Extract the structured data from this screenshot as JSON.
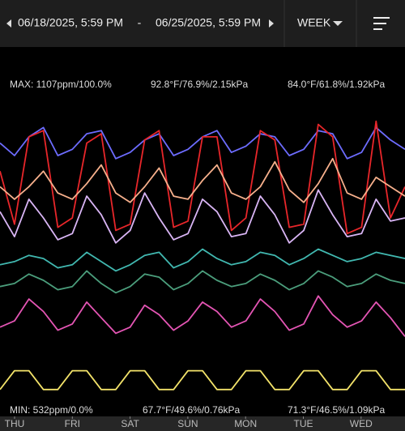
{
  "header": {
    "start": "06/18/2025, 5:59 PM",
    "separator": "-",
    "end": "06/25/2025, 5:59 PM",
    "period": "WEEK"
  },
  "max_labels": [
    "MAX: 1107ppm/100.0%",
    "92.8°F/76.9%/2.15kPa",
    "84.0°F/61.8%/1.92kPa"
  ],
  "min_labels": [
    "MIN: 532ppm/0.0%",
    "67.7°F/49.6%/0.76kPa",
    "71.3°F/46.5%/1.09kPa"
  ],
  "chart_data": {
    "type": "line",
    "x_tick_labels": [
      "THU",
      "FRI",
      "SAT",
      "SUN",
      "MON",
      "TUE",
      "WED"
    ],
    "ylim": [
      0,
      100
    ],
    "series": [
      {
        "color": "#6d6cff",
        "values": [
          84,
          80,
          86,
          89,
          80,
          82,
          87,
          88,
          79,
          81,
          85,
          87,
          80,
          82,
          86,
          88,
          81,
          83,
          87,
          86,
          80,
          82,
          88,
          87,
          79,
          81,
          89,
          85,
          82
        ]
      },
      {
        "color": "#e8262a",
        "values": [
          75,
          58,
          86,
          88,
          57,
          60,
          84,
          87,
          56,
          58,
          85,
          88,
          57,
          59,
          86,
          86,
          56,
          60,
          88,
          85,
          57,
          58,
          90,
          86,
          55,
          57,
          91,
          60,
          70
        ]
      },
      {
        "color": "#f7b08c",
        "values": [
          70,
          66,
          70,
          75,
          68,
          66,
          71,
          77,
          68,
          65,
          70,
          76,
          67,
          66,
          72,
          77,
          68,
          66,
          70,
          78,
          69,
          65,
          71,
          79,
          68,
          66,
          73,
          70,
          67
        ]
      },
      {
        "color": "#d9b5f5",
        "values": [
          62,
          54,
          66,
          60,
          53,
          55,
          67,
          61,
          52,
          56,
          68,
          60,
          53,
          55,
          66,
          62,
          54,
          55,
          67,
          61,
          52,
          56,
          69,
          61,
          54,
          55,
          66,
          59,
          60
        ]
      },
      {
        "color": "#41b8b0",
        "values": [
          45,
          46,
          48,
          47,
          44,
          45,
          49,
          46,
          43,
          45,
          48,
          49,
          44,
          46,
          50,
          47,
          45,
          46,
          49,
          48,
          45,
          47,
          50,
          48,
          46,
          47,
          49,
          48,
          47
        ]
      },
      {
        "color": "#4b9e7c",
        "values": [
          38,
          39,
          42,
          40,
          37,
          38,
          43,
          39,
          36,
          38,
          42,
          41,
          37,
          39,
          43,
          40,
          38,
          39,
          42,
          40,
          37,
          39,
          43,
          41,
          38,
          39,
          42,
          40,
          39
        ]
      },
      {
        "color": "#e455b4",
        "values": [
          25,
          27,
          34,
          30,
          24,
          26,
          33,
          28,
          23,
          25,
          32,
          29,
          24,
          27,
          33,
          30,
          25,
          27,
          34,
          30,
          24,
          26,
          35,
          29,
          25,
          27,
          33,
          28,
          22
        ]
      },
      {
        "color": "#f3e36a",
        "values": [
          5,
          11,
          11,
          5,
          5,
          11,
          11,
          5,
          5,
          11,
          11,
          5,
          5,
          11,
          11,
          5,
          5,
          11,
          11,
          5,
          5,
          11,
          11,
          5,
          5,
          11,
          11,
          5,
          5
        ]
      }
    ]
  }
}
